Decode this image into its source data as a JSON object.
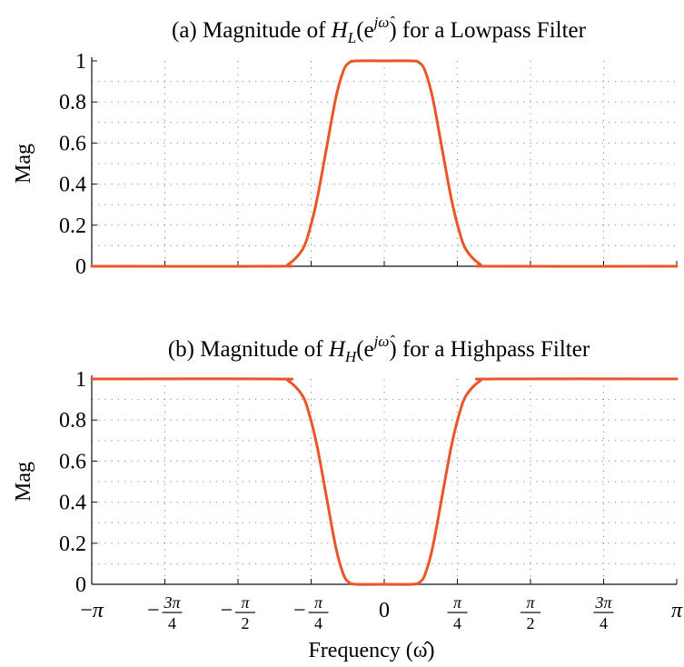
{
  "chart_data": [
    {
      "type": "line",
      "title": {
        "prefix": "(a) Magnitude of ",
        "func": "H",
        "sub": "L",
        "arg_open": "(e",
        "sup": "jω̂",
        "arg_close": ")",
        "suffix": " for a Lowpass Filter"
      },
      "ylabel": "Mag",
      "xlabel": "",
      "xlim": [
        -3.14159,
        3.14159
      ],
      "ylim": [
        0,
        1
      ],
      "yticks": [
        0,
        0.2,
        0.4,
        0.6,
        0.8,
        1
      ],
      "ytick_labels": [
        "0",
        "0.2",
        "0.4",
        "0.6",
        "0.8",
        "1"
      ],
      "xticks": [
        -3.14159,
        -2.35619,
        -1.5708,
        -0.785398,
        0,
        0.785398,
        1.5708,
        2.35619,
        3.14159
      ],
      "show_xtick_labels": false,
      "grid": true,
      "color": "#e8562a",
      "series": [
        {
          "x": [
            -3.14159,
            -1.18,
            -1.03,
            -0.88,
            -0.8,
            -0.72,
            -0.63,
            -0.52,
            -0.44,
            -0.38,
            -0.3,
            0.0,
            0.3,
            0.38,
            0.44,
            0.52,
            0.63,
            0.72,
            0.8,
            0.88,
            1.03,
            1.18,
            3.14159
          ],
          "y": [
            0,
            0,
            0.01,
            0.08,
            0.18,
            0.33,
            0.55,
            0.82,
            0.95,
            0.99,
            1,
            1,
            1,
            0.99,
            0.95,
            0.82,
            0.55,
            0.33,
            0.18,
            0.08,
            0.01,
            0,
            0
          ]
        }
      ]
    },
    {
      "type": "line",
      "title": {
        "prefix": "(b) Magnitude of ",
        "func": "H",
        "sub": "H",
        "arg_open": "(e",
        "sup": "jω̂",
        "arg_close": ")",
        "suffix": " for a Highpass Filter"
      },
      "ylabel": "Mag",
      "xlabel": "Frequency (ω̂)",
      "xlim": [
        -3.14159,
        3.14159
      ],
      "ylim": [
        0,
        1
      ],
      "yticks": [
        0,
        0.2,
        0.4,
        0.6,
        0.8,
        1
      ],
      "ytick_labels": [
        "0",
        "0.2",
        "0.4",
        "0.6",
        "0.8",
        "1"
      ],
      "xticks": [
        -3.14159,
        -2.35619,
        -1.5708,
        -0.785398,
        0,
        0.785398,
        1.5708,
        2.35619,
        3.14159
      ],
      "xtick_labels": [
        {
          "sign": "−",
          "num": "π",
          "den": ""
        },
        {
          "sign": "−",
          "num": "3π",
          "den": "4"
        },
        {
          "sign": "−",
          "num": "π",
          "den": "2"
        },
        {
          "sign": "−",
          "num": "π",
          "den": "4"
        },
        {
          "sign": "",
          "num": "0",
          "den": ""
        },
        {
          "sign": "",
          "num": "π",
          "den": "4"
        },
        {
          "sign": "",
          "num": "π",
          "den": "2"
        },
        {
          "sign": "",
          "num": "3π",
          "den": "4"
        },
        {
          "sign": "",
          "num": "π",
          "den": ""
        }
      ],
      "show_xtick_labels": true,
      "grid": true,
      "color": "#e8562a",
      "series": [
        {
          "x": [
            -3.14159,
            -1.18,
            -1.03,
            -0.88,
            -0.8,
            -0.72,
            -0.63,
            -0.52,
            -0.44,
            -0.38,
            -0.3,
            0.0,
            0.3,
            0.38,
            0.44,
            0.52,
            0.63,
            0.72,
            0.8,
            0.88,
            1.03,
            1.18,
            3.14159
          ],
          "y": [
            1,
            1,
            0.99,
            0.92,
            0.82,
            0.67,
            0.45,
            0.18,
            0.05,
            0.01,
            0,
            0,
            0,
            0.01,
            0.05,
            0.18,
            0.45,
            0.67,
            0.82,
            0.92,
            0.99,
            1,
            1
          ]
        }
      ]
    }
  ]
}
